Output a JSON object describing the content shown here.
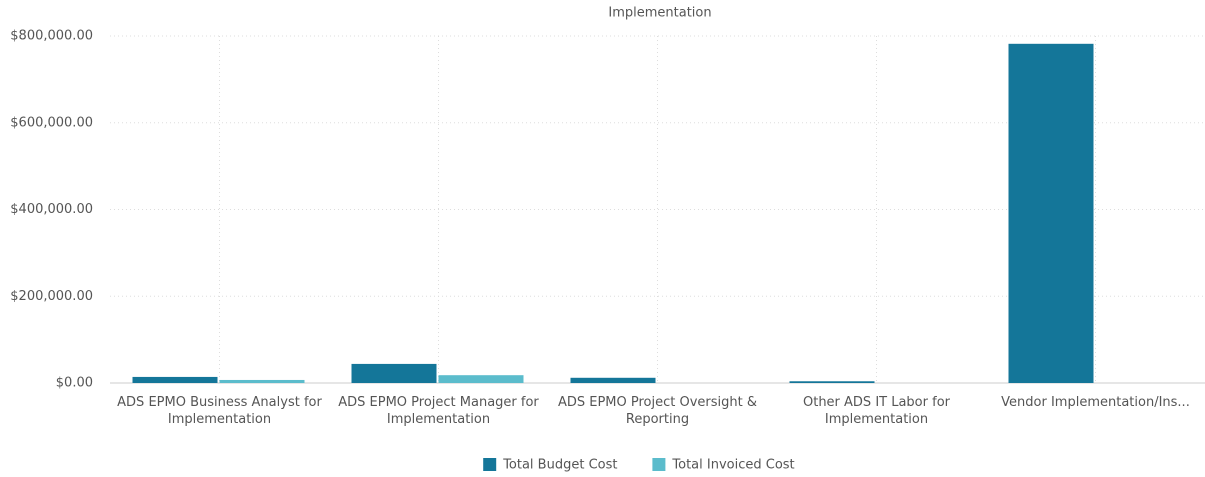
{
  "chart_data": {
    "type": "bar",
    "title": "Implementation",
    "categories": [
      "ADS EPMO Business Analyst for Implementation",
      "ADS EPMO Project Manager for Implementation",
      "ADS EPMO Project Oversight & Reporting",
      "Other ADS IT Labor for Implementation",
      "Vendor Implementation/Ins..."
    ],
    "series": [
      {
        "name": "Total Budget Cost",
        "color": "#147699",
        "values": [
          14000,
          44000,
          12000,
          4000,
          782000
        ]
      },
      {
        "name": "Total Invoiced Cost",
        "color": "#5bbccc",
        "values": [
          7000,
          18000,
          0,
          0,
          0
        ]
      }
    ],
    "ylim": [
      0,
      800000
    ],
    "yticks": [
      {
        "value": 0,
        "label": "$0.00"
      },
      {
        "value": 200000,
        "label": "$200,000.00"
      },
      {
        "value": 400000,
        "label": "$400,000.00"
      },
      {
        "value": 600000,
        "label": "$600,000.00"
      },
      {
        "value": 800000,
        "label": "$800,000.00"
      }
    ],
    "grid": true,
    "legend": "bottom"
  }
}
